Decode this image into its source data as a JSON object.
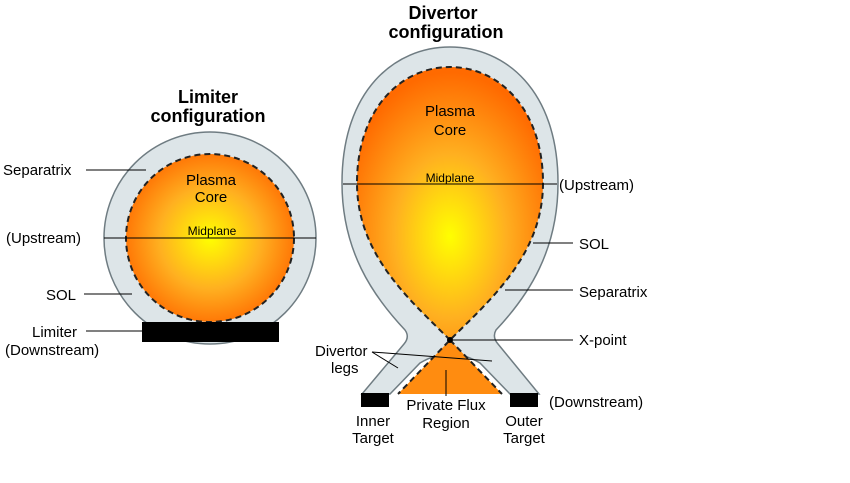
{
  "limiter": {
    "title_line1": "Limiter",
    "title_line2": "configuration",
    "core_line1": "Plasma",
    "core_line2": "Core",
    "midplane": "Midplane",
    "separatrix": "Separatrix",
    "upstream": "(Upstream)",
    "sol": "SOL",
    "limiter_line1": "Limiter",
    "limiter_line2": "(Downstream)"
  },
  "divertor": {
    "title_line1": "Divertor",
    "title_line2": "configuration",
    "core_line1": "Plasma",
    "core_line2": "Core",
    "midplane": "Midplane",
    "upstream": "(Upstream)",
    "sol": "SOL",
    "separatrix": "Separatrix",
    "xpoint": "X-point",
    "legs_line1": "Divertor",
    "legs_line2": "legs",
    "downstream": "(Downstream)",
    "inner_line1": "Inner",
    "inner_line2": "Target",
    "outer_line1": "Outer",
    "outer_line2": "Target",
    "pfr_line1": "Private Flux",
    "pfr_line2": "Region"
  },
  "colors": {
    "sol_fill": "#dde5e8",
    "sol_stroke": "#6f7c82",
    "core_center": "#ffff00",
    "core_mid": "#ffb020",
    "core_edge": "#ff6a00",
    "target": "#000000"
  }
}
